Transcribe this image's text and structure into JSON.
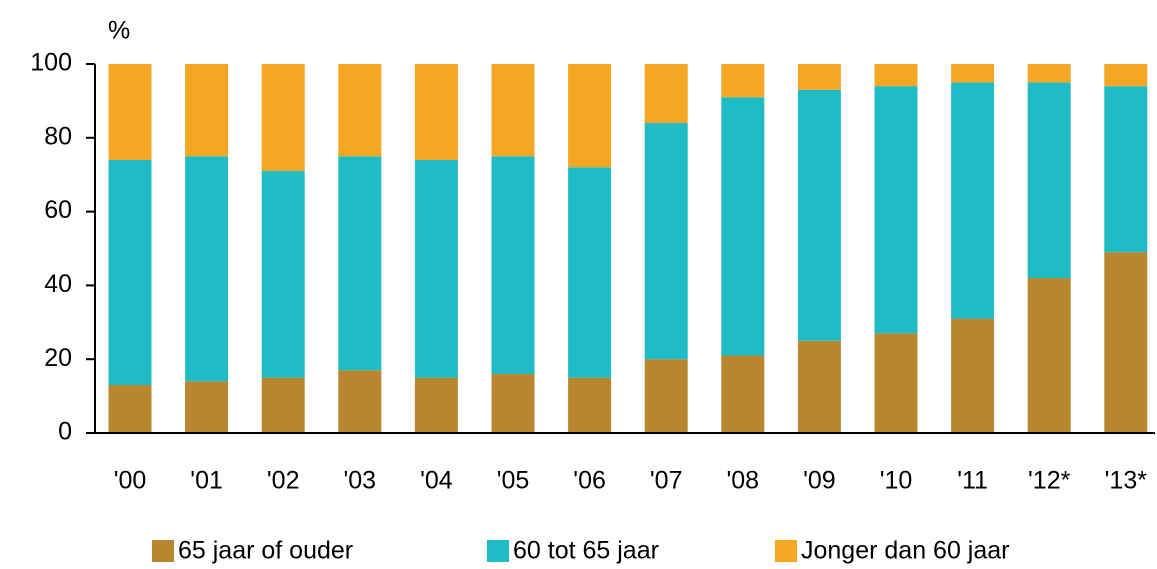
{
  "chart_data": {
    "type": "bar",
    "stacked": true,
    "y_label": "%",
    "categories": [
      "'00",
      "'01",
      "'02",
      "'03",
      "'04",
      "'05",
      "'06",
      "'07",
      "'08",
      "'09",
      "'10",
      "'11",
      "'12*",
      "'13*"
    ],
    "series": [
      {
        "name": "65 jaar of ouder",
        "color": "#b8862e",
        "values": [
          13,
          14,
          15,
          17,
          15,
          16,
          15,
          20,
          21,
          25,
          27,
          31,
          42,
          49
        ]
      },
      {
        "name": "60 tot 65 jaar",
        "color": "#1fbcc6",
        "values": [
          61,
          61,
          56,
          58,
          59,
          59,
          57,
          64,
          70,
          68,
          67,
          64,
          53,
          45
        ]
      },
      {
        "name": "Jonger dan 60 jaar",
        "color": "#f5a623",
        "values": [
          26,
          25,
          29,
          25,
          26,
          25,
          28,
          16,
          9,
          7,
          6,
          5,
          5,
          6
        ]
      }
    ],
    "ylim": [
      0,
      100
    ],
    "yticks": [
      0,
      20,
      40,
      60,
      80,
      100
    ],
    "grid": false,
    "legend": "bottom"
  }
}
